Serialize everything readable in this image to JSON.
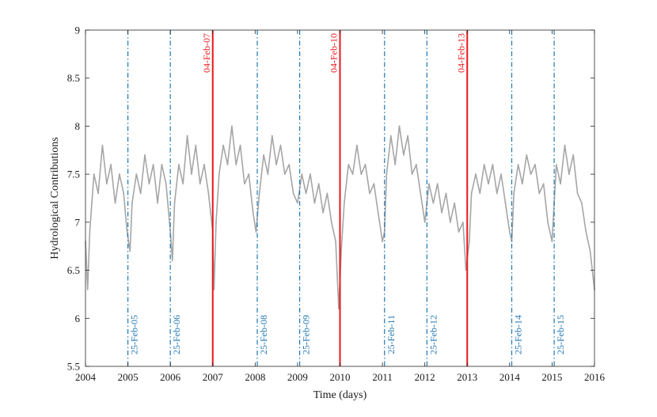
{
  "chart_data": {
    "type": "line",
    "title": "",
    "xlabel": "Time (days)",
    "ylabel": "Hydrological Contributions",
    "xlim": [
      2004,
      2016
    ],
    "ylim": [
      5.5,
      9
    ],
    "x_ticks": [
      2004,
      2005,
      2006,
      2007,
      2008,
      2009,
      2010,
      2011,
      2012,
      2013,
      2014,
      2015,
      2016
    ],
    "x_tick_labels": [
      "2004",
      "2005",
      "2006",
      "2007",
      "2008",
      "2009",
      "2010",
      "2011",
      "2012",
      "2013",
      "2014",
      "2015",
      "2016"
    ],
    "y_ticks": [
      5.5,
      6,
      6.5,
      7,
      7.5,
      8,
      8.5,
      9
    ],
    "y_tick_labels": [
      "5.5",
      "6",
      "6.5",
      "7",
      "7.5",
      "8",
      "8.5",
      "9"
    ],
    "grid": false,
    "series": [
      {
        "color": "#a6a6a6",
        "x": [
          2004.0,
          2004.05,
          2004.1,
          2004.15,
          2004.2,
          2004.3,
          2004.4,
          2004.5,
          2004.6,
          2004.7,
          2004.8,
          2004.9,
          2004.98,
          2005.05,
          2005.1,
          2005.2,
          2005.3,
          2005.4,
          2005.5,
          2005.6,
          2005.7,
          2005.8,
          2005.9,
          2006.0,
          2006.05,
          2006.1,
          2006.2,
          2006.3,
          2006.4,
          2006.5,
          2006.6,
          2006.7,
          2006.8,
          2006.9,
          2007.0,
          2007.03,
          2007.08,
          2007.15,
          2007.25,
          2007.35,
          2007.45,
          2007.55,
          2007.65,
          2007.75,
          2007.85,
          2007.95,
          2008.02,
          2008.1,
          2008.2,
          2008.3,
          2008.4,
          2008.5,
          2008.6,
          2008.7,
          2008.8,
          2008.9,
          2009.0,
          2009.1,
          2009.2,
          2009.3,
          2009.4,
          2009.5,
          2009.6,
          2009.7,
          2009.8,
          2009.9,
          2009.97,
          2010.03,
          2010.1,
          2010.2,
          2010.3,
          2010.4,
          2010.5,
          2010.6,
          2010.7,
          2010.8,
          2010.9,
          2011.0,
          2011.05,
          2011.1,
          2011.2,
          2011.3,
          2011.4,
          2011.5,
          2011.6,
          2011.7,
          2011.8,
          2011.9,
          2012.0,
          2012.1,
          2012.2,
          2012.3,
          2012.4,
          2012.5,
          2012.6,
          2012.7,
          2012.8,
          2012.9,
          2012.97,
          2013.05,
          2013.1,
          2013.2,
          2013.3,
          2013.4,
          2013.5,
          2013.6,
          2013.7,
          2013.8,
          2013.9,
          2014.0,
          2014.05,
          2014.1,
          2014.2,
          2014.3,
          2014.4,
          2014.5,
          2014.6,
          2014.7,
          2014.8,
          2014.9,
          2015.0,
          2015.05,
          2015.1,
          2015.2,
          2015.3,
          2015.4,
          2015.5,
          2015.6,
          2015.7,
          2015.8,
          2015.9,
          2016.0
        ],
        "y": [
          6.8,
          6.3,
          6.9,
          7.2,
          7.5,
          7.3,
          7.8,
          7.4,
          7.6,
          7.2,
          7.5,
          7.3,
          6.9,
          6.7,
          7.2,
          7.5,
          7.3,
          7.7,
          7.4,
          7.6,
          7.2,
          7.6,
          7.4,
          6.9,
          6.6,
          7.2,
          7.6,
          7.4,
          7.9,
          7.5,
          7.8,
          7.4,
          7.6,
          7.3,
          6.9,
          6.3,
          7.0,
          7.5,
          7.8,
          7.6,
          8.0,
          7.6,
          7.8,
          7.4,
          7.5,
          7.1,
          6.9,
          7.3,
          7.7,
          7.5,
          7.9,
          7.6,
          7.8,
          7.5,
          7.6,
          7.3,
          7.2,
          7.5,
          7.3,
          7.5,
          7.2,
          7.4,
          7.1,
          7.3,
          7.0,
          6.8,
          6.1,
          6.7,
          7.2,
          7.6,
          7.5,
          7.8,
          7.5,
          7.6,
          7.3,
          7.4,
          7.1,
          6.8,
          6.9,
          7.5,
          7.9,
          7.6,
          8.0,
          7.7,
          7.9,
          7.5,
          7.6,
          7.3,
          7.0,
          7.4,
          7.2,
          7.4,
          7.1,
          7.3,
          7.0,
          7.2,
          6.9,
          7.0,
          6.5,
          6.8,
          7.3,
          7.5,
          7.3,
          7.6,
          7.4,
          7.6,
          7.3,
          7.5,
          7.2,
          6.9,
          6.8,
          7.3,
          7.6,
          7.4,
          7.7,
          7.5,
          7.6,
          7.3,
          7.4,
          7.0,
          6.8,
          7.2,
          7.6,
          7.4,
          7.8,
          7.5,
          7.7,
          7.3,
          7.2,
          6.9,
          6.7,
          6.3
        ]
      }
    ],
    "red_markers": [
      {
        "x": 2007.0,
        "label": "04-Feb-07",
        "color": "#e8171c"
      },
      {
        "x": 2010.0,
        "label": "04-Feb-10",
        "color": "#e8171c"
      },
      {
        "x": 2013.0,
        "label": "04-Feb-13",
        "color": "#e8171c"
      }
    ],
    "blue_markers": [
      {
        "x": 2005.0,
        "label": "25-Feb-05",
        "color": "#1f77b4"
      },
      {
        "x": 2006.0,
        "label": "25-Feb-06",
        "color": "#1f77b4"
      },
      {
        "x": 2008.05,
        "label": "25-Feb-08",
        "color": "#1f77b4"
      },
      {
        "x": 2009.05,
        "label": "25-Feb-09",
        "color": "#1f77b4"
      },
      {
        "x": 2011.05,
        "label": "25-Feb-11",
        "color": "#1f77b4"
      },
      {
        "x": 2012.05,
        "label": "25-Feb-12",
        "color": "#1f77b4"
      },
      {
        "x": 2014.05,
        "label": "25-Feb-14",
        "color": "#1f77b4"
      },
      {
        "x": 2015.05,
        "label": "25-Feb-15",
        "color": "#1f77b4"
      }
    ]
  }
}
